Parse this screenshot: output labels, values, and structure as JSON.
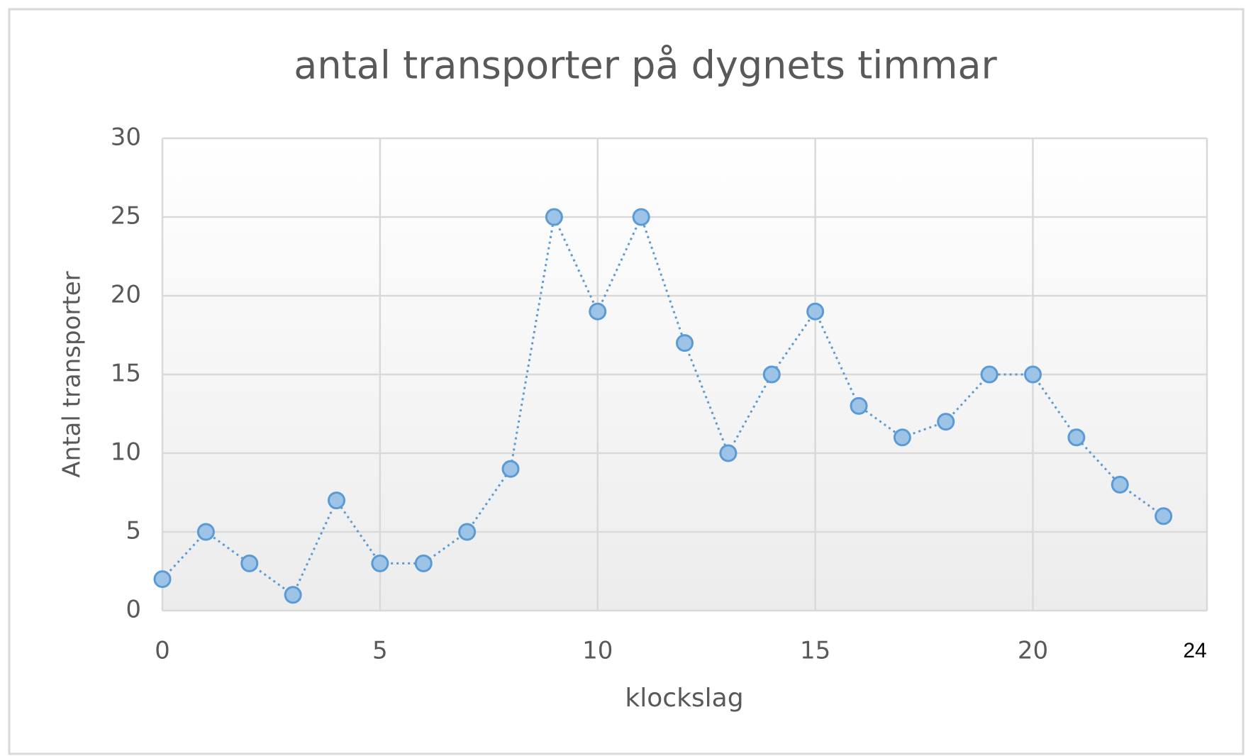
{
  "chart_data": {
    "type": "line",
    "title": "antal transporter  på dygnets  timmar",
    "x_label": "klockslag",
    "y_label": "Antal transporter",
    "x": [
      0,
      1,
      2,
      3,
      4,
      5,
      6,
      7,
      8,
      9,
      10,
      11,
      12,
      13,
      14,
      15,
      16,
      17,
      18,
      19,
      20,
      21,
      22,
      23
    ],
    "values": [
      2,
      5,
      3,
      1,
      7,
      3,
      3,
      5,
      9,
      25,
      19,
      25,
      17,
      10,
      15,
      19,
      13,
      11,
      12,
      15,
      15,
      11,
      8,
      6
    ],
    "color": "#5b9bd5",
    "marker_color": "#9dc3e6",
    "xlim": [
      0,
      24
    ],
    "xticks": [
      0,
      5,
      10,
      15,
      20,
      24
    ],
    "ylim": [
      0,
      30
    ],
    "yticks": [
      0,
      5,
      10,
      15,
      20,
      25,
      30
    ],
    "grid": true
  }
}
